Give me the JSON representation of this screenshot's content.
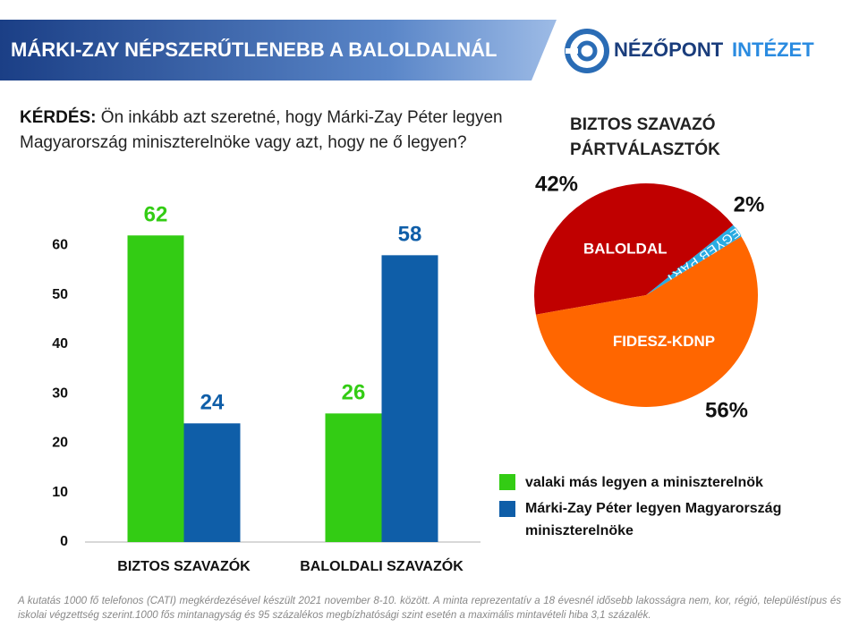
{
  "header": {
    "title": "MÁRKI-ZAY NÉPSZERŰTLENEBB A BALOLDALNÁL",
    "logo_part1": "NÉZŐPONT",
    "logo_part2": "INTÉZET"
  },
  "question": {
    "label": "KÉRDÉS:",
    "text": "Ön inkább azt szeretné, hogy Márki-Zay Péter legyen Magyarország miniszterelnöke vagy azt, hogy ne ő legyen?"
  },
  "chart_data": [
    {
      "type": "bar",
      "categories": [
        "BIZTOS SZAVAZÓK",
        "BALOLDALI SZAVAZÓK"
      ],
      "series": [
        {
          "name": "valaki más legyen a miniszterelnök",
          "color": "#33cc14",
          "values": [
            62,
            26
          ]
        },
        {
          "name": "Márki-Zay Péter legyen Magyarország miniszterelnöke",
          "color": "#0f5ea8",
          "values": [
            24,
            58
          ]
        }
      ],
      "ylim": [
        0,
        70
      ],
      "yticks": [
        0,
        10,
        20,
        30,
        40,
        50,
        60
      ],
      "grid": false
    },
    {
      "type": "pie",
      "title": "BIZTOS SZAVAZÓ PÁRTVÁLASZTÓK",
      "categories": [
        "BALOLDAL",
        "EGYÉB PÁRT",
        "FIDESZ-KDNP"
      ],
      "values": [
        42,
        2,
        56
      ],
      "value_labels": [
        "42%",
        "2%",
        "56%"
      ],
      "colors": [
        "#c00000",
        "#29abe2",
        "#ff6600"
      ]
    }
  ],
  "footnote": "A kutatás 1000 fő telefonos (CATI) megkérdezésével készült 2021 november 8-10. között. A minta reprezentatív a 18 évesnél idősebb lakosságra nem, kor, régió, településtípus és iskolai végzettség szerint.1000 fős mintanagyság és 95 százalékos megbízhatósági szint esetén a maximális mintavételi hiba 3,1 százalék."
}
